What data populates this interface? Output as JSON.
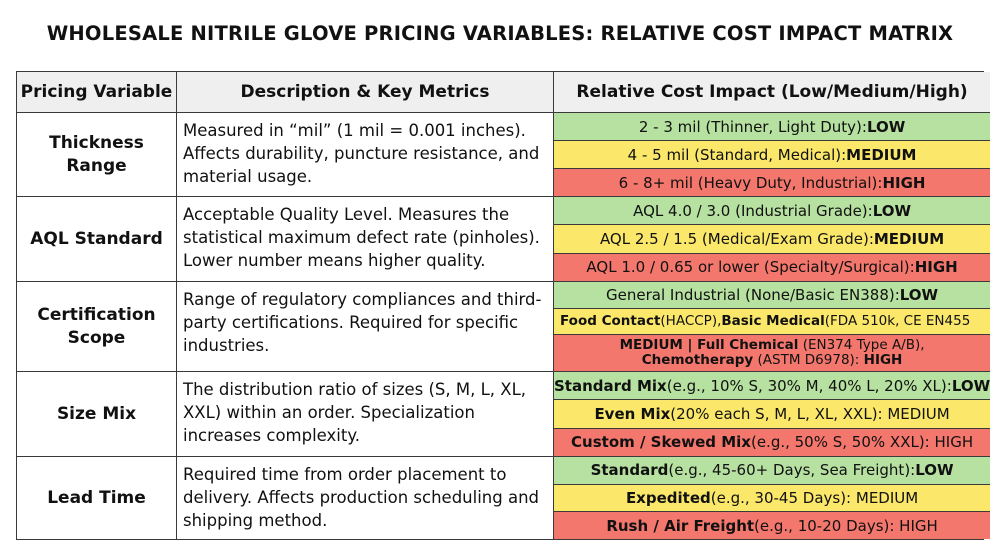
{
  "title": "WHOLESALE NITRILE GLOVE PRICING VARIABLES: RELATIVE COST IMPACT MATRIX",
  "colors": {
    "low": "#b7e1a1",
    "medium": "#fbe86a",
    "high": "#f4776d",
    "header": "#efefef"
  },
  "headers": {
    "variable": "Pricing Variable",
    "description": "Description & Key Metrics",
    "impact": "Relative Cost Impact (Low/Medium/High)"
  },
  "rows": [
    {
      "variable": "Thickness Range",
      "description": "Measured in “mil” (1 mil = 0.001 inches). Affects durability, puncture resistance, and material usage.",
      "levels": [
        {
          "b1": "",
          "t1": "2 - 3 mil (Thinner, Light Duty): ",
          "b2": "LOW",
          "t2": ""
        },
        {
          "b1": "",
          "t1": "4 - 5 mil (Standard, Medical): ",
          "b2": "MEDIUM",
          "t2": ""
        },
        {
          "b1": "",
          "t1": "6 - 8+ mil (Heavy Duty, Industrial): ",
          "b2": "HIGH",
          "t2": ""
        }
      ]
    },
    {
      "variable": "AQL Standard",
      "description": "Acceptable Quality Level. Measures the statistical maximum defect rate (pinholes). Lower number means higher quality.",
      "levels": [
        {
          "b1": "",
          "t1": "AQL 4.0 / 3.0 (Industrial Grade): ",
          "b2": "LOW",
          "t2": ""
        },
        {
          "b1": "",
          "t1": "AQL 2.5 / 1.5 (Medical/Exam Grade): ",
          "b2": "MEDIUM",
          "t2": ""
        },
        {
          "b1": "",
          "t1": "AQL 1.0 / 0.65 or lower (Specialty/Surgical): ",
          "b2": "HIGH",
          "t2": ""
        }
      ]
    },
    {
      "variable": "Certification Scope",
      "description": "Range of regulatory compliances and third-party certifications. Required for specific industries.",
      "levels": [
        {
          "b1": "",
          "t1": "General Industrial (None/Basic EN388): ",
          "b2": "LOW",
          "t2": ""
        },
        {
          "b1": "Food Contact",
          "t1": " (HACCP), ",
          "b2": "Basic Medical",
          "t2": " (FDA 510k, CE EN455"
        },
        {
          "b1": "MEDIUM | Full Chemical",
          "t1": " (EN374 Type A/B), ",
          "b2": "Chemotherapy",
          "t2": " (ASTM D6978): ",
          "b3": "HIGH"
        }
      ]
    },
    {
      "variable": "Size Mix",
      "description": "The distribution ratio of sizes (S, M, L, XL, XXL) within an order. Specialization increases complexity.",
      "levels": [
        {
          "b1": "Standard Mix",
          "t1": " (e.g., 10% S, 30% M, 40% L, 20% XL): ",
          "b2": "LOW",
          "t2": ""
        },
        {
          "b1": "Even Mix",
          "t1": " (20% each S, M, L, XL, XXL): MEDIUM",
          "b2": "",
          "t2": ""
        },
        {
          "b1": "Custom / Skewed Mix",
          "t1": " (e.g., 50% S, 50% XXL): HIGH",
          "b2": "",
          "t2": ""
        }
      ]
    },
    {
      "variable": "Lead Time",
      "description": "Required time from order placement to delivery. Affects production scheduling and shipping method.",
      "levels": [
        {
          "b1": "Standard",
          "t1": " (e.g., 45-60+ Days, Sea Freight): ",
          "b2": "LOW",
          "t2": ""
        },
        {
          "b1": "Expedited",
          "t1": " (e.g., 30-45 Days): MEDIUM",
          "b2": "",
          "t2": ""
        },
        {
          "b1": "Rush / Air Freight",
          "t1": " (e.g., 10-20 Days): HIGH",
          "b2": "",
          "t2": ""
        }
      ]
    }
  ]
}
